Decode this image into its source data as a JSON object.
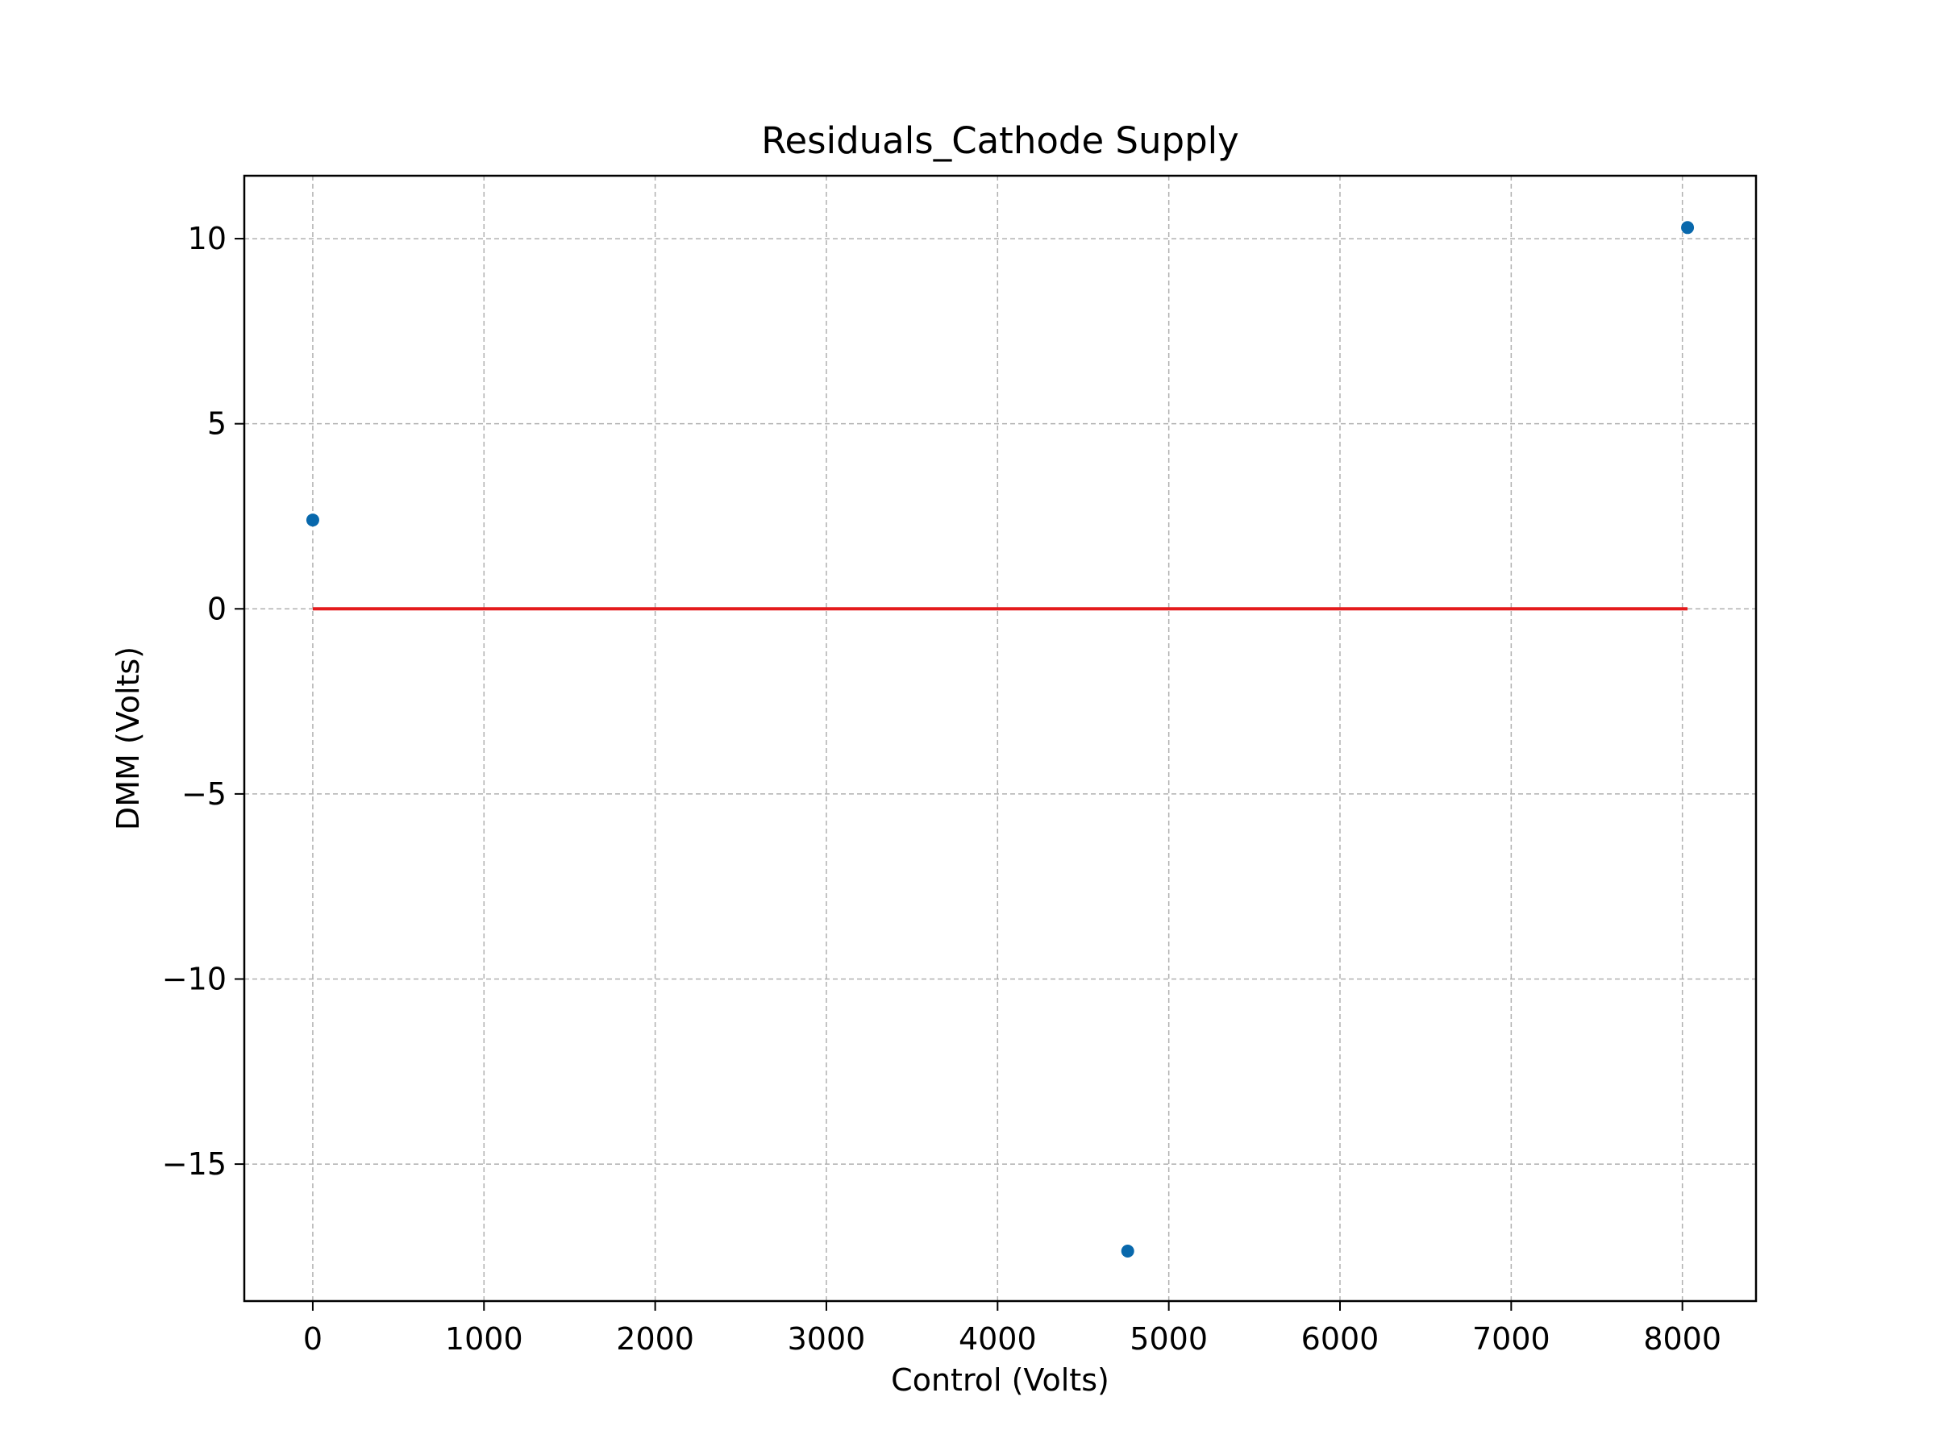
{
  "chart_data": {
    "type": "scatter",
    "title": "Residuals_Cathode Supply",
    "xlabel": "Control (Volts)",
    "ylabel": "DMM (Volts)",
    "xlim": [
      -400,
      8430
    ],
    "ylim": [
      -18.7,
      11.7
    ],
    "grid": true,
    "x_ticks": [
      0,
      1000,
      2000,
      3000,
      4000,
      5000,
      6000,
      7000,
      8000
    ],
    "x_tick_labels": [
      "0",
      "1000",
      "2000",
      "3000",
      "4000",
      "5000",
      "6000",
      "7000",
      "8000"
    ],
    "y_ticks": [
      10,
      5,
      0,
      -5,
      -10,
      -15
    ],
    "y_tick_labels": [
      "10",
      "5",
      "0",
      "−5",
      "−10",
      "−15"
    ],
    "series": [
      {
        "kind": "scatter",
        "color": "#0868ac",
        "points": [
          {
            "x": 0,
            "y": 2.4
          },
          {
            "x": 4760,
            "y": -17.35
          },
          {
            "x": 8030,
            "y": 10.3
          }
        ]
      },
      {
        "kind": "line",
        "color": "#e41a1c",
        "points": [
          {
            "x": 0,
            "y": 0
          },
          {
            "x": 8030,
            "y": 0
          }
        ]
      }
    ]
  }
}
